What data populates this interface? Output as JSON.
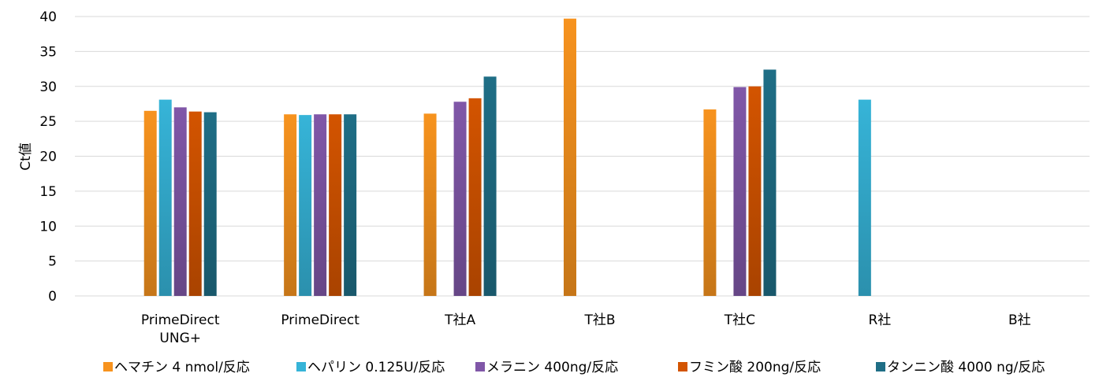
{
  "chart_data": {
    "type": "bar",
    "ylabel": "Ct値",
    "xlabel": "",
    "ylim": [
      0,
      40
    ],
    "yticks": [
      0,
      5,
      10,
      15,
      20,
      25,
      30,
      35,
      40
    ],
    "grid": true,
    "legend_position": "bottom",
    "categories": [
      [
        "PrimeDirect",
        "UNG+"
      ],
      [
        "PrimeDirect"
      ],
      [
        "T社A"
      ],
      [
        "T社B"
      ],
      [
        "T社C"
      ],
      [
        "R社"
      ],
      [
        "B社"
      ]
    ],
    "series": [
      {
        "name": "ヘマチン 4 nmol/反応",
        "color": "#f7931e",
        "values": [
          26.5,
          26.0,
          26.1,
          39.7,
          26.7,
          null,
          null
        ]
      },
      {
        "name": "ヘパリン 0.125U/反応",
        "color": "#36b4d8",
        "values": [
          28.1,
          25.9,
          null,
          null,
          null,
          28.1,
          null
        ]
      },
      {
        "name": "メラニン 400ng/反応",
        "color": "#8057a8",
        "values": [
          27.0,
          26.0,
          27.8,
          null,
          29.9,
          null,
          null
        ]
      },
      {
        "name": "フミン酸 200ng/反応",
        "color": "#d35400",
        "values": [
          26.4,
          26.0,
          28.3,
          null,
          30.0,
          null,
          null
        ]
      },
      {
        "name": "タンニン酸 4000 ng/反応",
        "color": "#1f6e86",
        "values": [
          26.3,
          26.0,
          31.4,
          null,
          32.4,
          null,
          null
        ]
      }
    ]
  }
}
